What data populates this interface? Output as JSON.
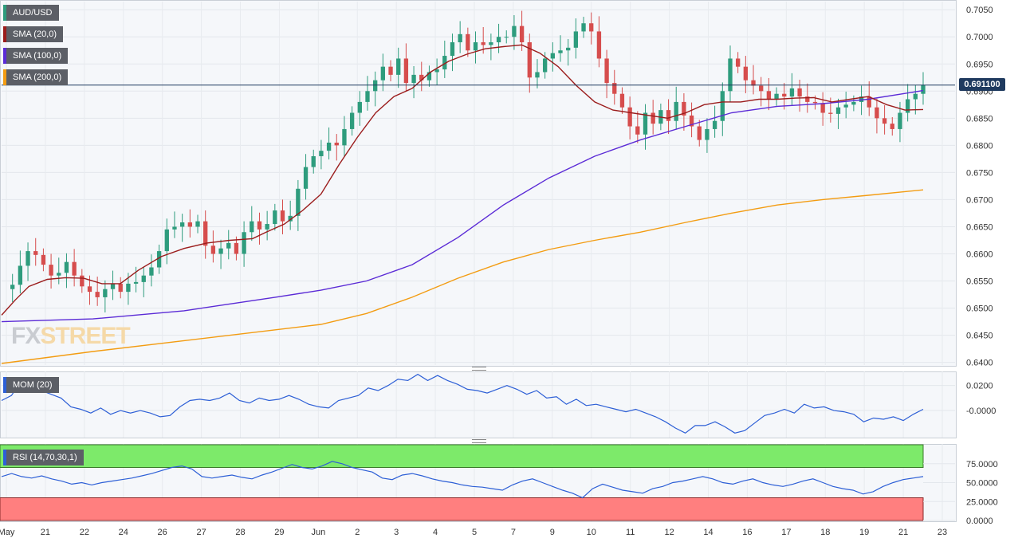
{
  "symbol": "AUD/USD",
  "indicators": {
    "sma20": "SMA (20,0)",
    "sma100": "SMA (100,0)",
    "sma200": "SMA (200,0)",
    "mom": "MOM (20)",
    "rsi": "RSI (14,70,30,1)"
  },
  "colors": {
    "up": "#2e9c7d",
    "down": "#d64d4d",
    "sma20": "#9b1c1c",
    "sma100": "#5b2bd6",
    "sma200": "#f39c12",
    "mom_line": "#2d5fd6",
    "rsi_line": "#2d5fd6",
    "overbought": "#7dea6a",
    "oversold": "#ff7f7f",
    "price_line": "#1f3a5f"
  },
  "current_price": "0.691100",
  "logo": {
    "a": "FX",
    "b": "STREET"
  },
  "chart_data": [
    {
      "type": "candlestick",
      "title": "AUD/USD",
      "ylim": [
        0.6395,
        0.7065
      ],
      "yticks": [
        "0.7050",
        "0.7000",
        "0.6950",
        "0.6900",
        "0.6850",
        "0.6800",
        "0.6750",
        "0.6700",
        "0.6650",
        "0.6600",
        "0.6550",
        "0.6500",
        "0.6450",
        "0.6400"
      ],
      "ytick_values": [
        0.705,
        0.7,
        0.695,
        0.69,
        0.685,
        0.68,
        0.675,
        0.67,
        0.665,
        0.66,
        0.655,
        0.65,
        0.645,
        0.64
      ],
      "x_labels": [
        "May",
        "21",
        "22",
        "24",
        "26",
        "27",
        "28",
        "29",
        "Jun",
        "2",
        "3",
        "4",
        "5",
        "7",
        "9",
        "10",
        "11",
        "12",
        "14",
        "16",
        "17",
        "18",
        "19",
        "21",
        "23"
      ],
      "close_path": [
        0.6535,
        0.6543,
        0.6578,
        0.6605,
        0.6598,
        0.658,
        0.656,
        0.6565,
        0.6585,
        0.656,
        0.654,
        0.653,
        0.652,
        0.6535,
        0.6545,
        0.653,
        0.6545,
        0.6548,
        0.656,
        0.6575,
        0.6605,
        0.6645,
        0.665,
        0.6658,
        0.665,
        0.666,
        0.6615,
        0.66,
        0.661,
        0.662,
        0.66,
        0.664,
        0.666,
        0.6645,
        0.6655,
        0.668,
        0.666,
        0.667,
        0.672,
        0.676,
        0.678,
        0.679,
        0.6805,
        0.68,
        0.683,
        0.686,
        0.688,
        0.69,
        0.692,
        0.6945,
        0.693,
        0.696,
        0.6915,
        0.693,
        0.692,
        0.6935,
        0.694,
        0.6965,
        0.699,
        0.7005,
        0.6975,
        0.699,
        0.6985,
        0.699,
        0.7,
        0.7,
        0.702,
        0.699,
        0.6925,
        0.6935,
        0.696,
        0.697,
        0.6975,
        0.698,
        0.701,
        0.7025,
        0.701,
        0.696,
        0.6915,
        0.6895,
        0.687,
        0.6835,
        0.682,
        0.686,
        0.684,
        0.6865,
        0.6845,
        0.688,
        0.6855,
        0.6835,
        0.681,
        0.683,
        0.6845,
        0.69,
        0.696,
        0.6945,
        0.692,
        0.691,
        0.69,
        0.6885,
        0.6895,
        0.689,
        0.6905,
        0.689,
        0.688,
        0.6878,
        0.686,
        0.6858,
        0.687,
        0.6875,
        0.688,
        0.689,
        0.687,
        0.685,
        0.684,
        0.683,
        0.686,
        0.6885,
        0.6895,
        0.6911
      ],
      "sma20": [
        [
          0,
          0.6487
        ],
        [
          3,
          0.6515
        ],
        [
          6,
          0.654
        ],
        [
          10,
          0.6553
        ],
        [
          14,
          0.6556
        ],
        [
          18,
          0.6555
        ],
        [
          22,
          0.6545
        ],
        [
          26,
          0.6545
        ],
        [
          30,
          0.657
        ],
        [
          35,
          0.6595
        ],
        [
          40,
          0.661
        ],
        [
          45,
          0.662
        ],
        [
          50,
          0.6625
        ],
        [
          55,
          0.6628
        ],
        [
          58,
          0.664
        ],
        [
          62,
          0.6655
        ],
        [
          66,
          0.668
        ],
        [
          70,
          0.671
        ],
        [
          74,
          0.6765
        ],
        [
          78,
          0.6815
        ],
        [
          82,
          0.686
        ],
        [
          86,
          0.689
        ],
        [
          90,
          0.6905
        ],
        [
          94,
          0.6935
        ],
        [
          98,
          0.6955
        ],
        [
          102,
          0.6968
        ],
        [
          106,
          0.6978
        ],
        [
          110,
          0.6982
        ],
        [
          114,
          0.6985
        ],
        [
          118,
          0.697
        ],
        [
          122,
          0.6945
        ],
        [
          126,
          0.691
        ],
        [
          130,
          0.688
        ],
        [
          134,
          0.6865
        ],
        [
          138,
          0.686
        ],
        [
          142,
          0.6855
        ],
        [
          146,
          0.685
        ],
        [
          150,
          0.686
        ],
        [
          154,
          0.6875
        ],
        [
          158,
          0.688
        ],
        [
          162,
          0.688
        ],
        [
          166,
          0.6885
        ],
        [
          170,
          0.6885
        ],
        [
          174,
          0.6887
        ],
        [
          178,
          0.6888
        ],
        [
          182,
          0.688
        ],
        [
          186,
          0.6885
        ],
        [
          190,
          0.689
        ],
        [
          194,
          0.6875
        ],
        [
          198,
          0.6865
        ],
        [
          202,
          0.6866
        ]
      ],
      "sma100": [
        [
          0,
          0.6475
        ],
        [
          20,
          0.648
        ],
        [
          40,
          0.6495
        ],
        [
          60,
          0.652
        ],
        [
          70,
          0.6533
        ],
        [
          80,
          0.655
        ],
        [
          90,
          0.658
        ],
        [
          100,
          0.663
        ],
        [
          110,
          0.669
        ],
        [
          120,
          0.674
        ],
        [
          130,
          0.678
        ],
        [
          140,
          0.681
        ],
        [
          150,
          0.6835
        ],
        [
          160,
          0.686
        ],
        [
          170,
          0.6872
        ],
        [
          180,
          0.6877
        ],
        [
          190,
          0.6885
        ],
        [
          202,
          0.6901
        ]
      ],
      "sma200": [
        [
          0,
          0.6398
        ],
        [
          20,
          0.642
        ],
        [
          40,
          0.644
        ],
        [
          60,
          0.646
        ],
        [
          70,
          0.647
        ],
        [
          80,
          0.649
        ],
        [
          90,
          0.652
        ],
        [
          100,
          0.6555
        ],
        [
          110,
          0.6585
        ],
        [
          120,
          0.6608
        ],
        [
          130,
          0.6625
        ],
        [
          140,
          0.664
        ],
        [
          150,
          0.6658
        ],
        [
          160,
          0.6675
        ],
        [
          170,
          0.669
        ],
        [
          180,
          0.67
        ],
        [
          190,
          0.6708
        ],
        [
          202,
          0.6718
        ]
      ]
    },
    {
      "type": "line",
      "title": "MOM (20)",
      "ylim": [
        -0.021,
        0.03
      ],
      "yticks": [
        "0.0200",
        "-0.0000"
      ],
      "ytick_values": [
        0.02,
        0.0
      ],
      "values": [
        0.008,
        0.012,
        0.024,
        0.016,
        0.016,
        0.013,
        0.01,
        0.003,
        0.001,
        -0.002,
        0.002,
        -0.003,
        0.0,
        -0.002,
        0.0,
        -0.002,
        -0.005,
        -0.004,
        0.003,
        0.008,
        0.009,
        0.008,
        0.01,
        0.014,
        0.008,
        0.006,
        0.01,
        0.008,
        0.009,
        0.012,
        0.009,
        0.005,
        0.003,
        0.002,
        0.008,
        0.01,
        0.012,
        0.018,
        0.016,
        0.02,
        0.025,
        0.024,
        0.029,
        0.024,
        0.028,
        0.024,
        0.021,
        0.017,
        0.016,
        0.014,
        0.017,
        0.02,
        0.017,
        0.013,
        0.016,
        0.01,
        0.011,
        0.005,
        0.009,
        0.004,
        0.005,
        0.003,
        0.001,
        -0.001,
        0.001,
        -0.002,
        -0.005,
        -0.009,
        -0.014,
        -0.018,
        -0.012,
        -0.012,
        -0.009,
        -0.013,
        -0.018,
        -0.016,
        -0.01,
        -0.004,
        -0.002,
        0.001,
        -0.002,
        0.005,
        0.002,
        0.003,
        0.0,
        -0.001,
        -0.003,
        -0.009,
        -0.006,
        -0.007,
        -0.005,
        -0.008,
        -0.003,
        0.001
      ],
      "ytick_label_note": ""
    },
    {
      "type": "line",
      "title": "RSI (14,70,30,1)",
      "ylim": [
        0,
        100
      ],
      "yticks": [
        "75.0000",
        "50.0000",
        "25.0000",
        "0.0000"
      ],
      "ytick_values": [
        75,
        50,
        25,
        0
      ],
      "overbought": 70,
      "oversold": 30,
      "values": [
        58,
        62,
        58,
        56,
        59,
        55,
        52,
        48,
        50,
        47,
        50,
        52,
        54,
        56,
        59,
        62,
        66,
        70,
        72,
        68,
        58,
        56,
        58,
        60,
        57,
        55,
        60,
        64,
        69,
        74,
        70,
        68,
        72,
        78,
        75,
        70,
        67,
        64,
        56,
        54,
        60,
        62,
        59,
        55,
        52,
        50,
        47,
        45,
        44,
        42,
        40,
        47,
        52,
        55,
        50,
        45,
        40,
        36,
        30,
        42,
        48,
        44,
        40,
        38,
        36,
        42,
        45,
        50,
        52,
        55,
        58,
        55,
        50,
        48,
        52,
        55,
        50,
        47,
        45,
        48,
        52,
        55,
        50,
        45,
        42,
        40,
        35,
        38,
        45,
        50,
        54,
        56,
        58
      ]
    }
  ]
}
